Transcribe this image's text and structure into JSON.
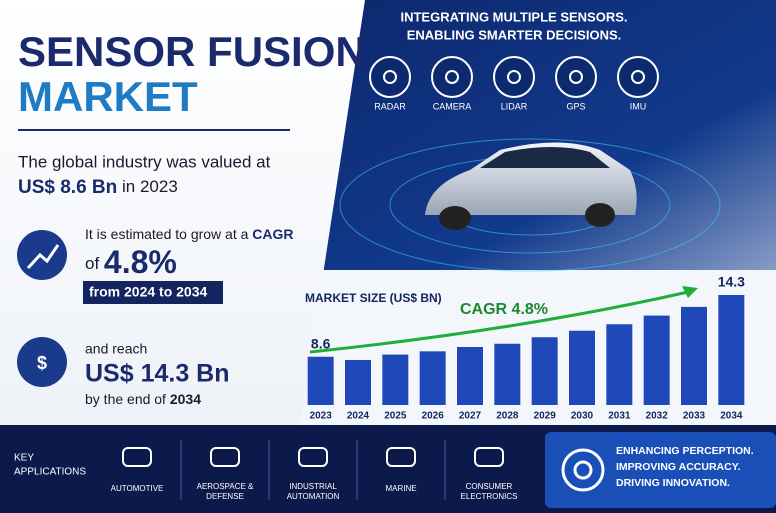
{
  "header": {
    "title_line1": "SENSOR FUSION",
    "title_line2": "MARKET"
  },
  "valued": {
    "text": "The global industry was valued at",
    "amount": "US$ 8.6 Bn",
    "suffix": "in 2023"
  },
  "growth": {
    "text": "It is estimated to grow at a",
    "cagr_word": "CAGR",
    "of": "of",
    "rate": "4.8%",
    "period": "from 2024 to 2034"
  },
  "reach": {
    "text": "and reach",
    "amount": "US$ 14.3 Bn",
    "by": "by the end of",
    "year": "2034"
  },
  "sensors": {
    "heading_line1": "INTEGRATING MULTIPLE SENSORS.",
    "heading_line2": "ENABLING SMARTER DECISIONS.",
    "items": [
      "RADAR",
      "CAMERA",
      "LIDAR",
      "GPS",
      "IMU"
    ]
  },
  "applications": {
    "label_line1": "KEY",
    "label_line2": "APPLICATIONS",
    "items": [
      [
        "AUTOMOTIVE"
      ],
      [
        "AEROSPACE &",
        "DEFENSE"
      ],
      [
        "INDUSTRIAL",
        "AUTOMATION"
      ],
      [
        "MARINE"
      ],
      [
        "CONSUMER",
        "ELECTRONICS"
      ]
    ]
  },
  "tagline": [
    "ENHANCING PERCEPTION.",
    "IMPROVING ACCURACY.",
    "DRIVING INNOVATION."
  ],
  "chart_data": {
    "type": "bar",
    "title": "MARKET SIZE (US$ BN)",
    "annotation": "CAGR 4.8%",
    "color": "#1f49b8",
    "categories": [
      "2023",
      "2024",
      "2025",
      "2026",
      "2027",
      "2028",
      "2029",
      "2030",
      "2031",
      "2032",
      "2033",
      "2034"
    ],
    "values": [
      8.6,
      8.3,
      8.8,
      9.1,
      9.5,
      9.8,
      10.4,
      11.0,
      11.6,
      12.4,
      13.2,
      14.3
    ],
    "labeled": [
      0,
      11
    ]
  }
}
